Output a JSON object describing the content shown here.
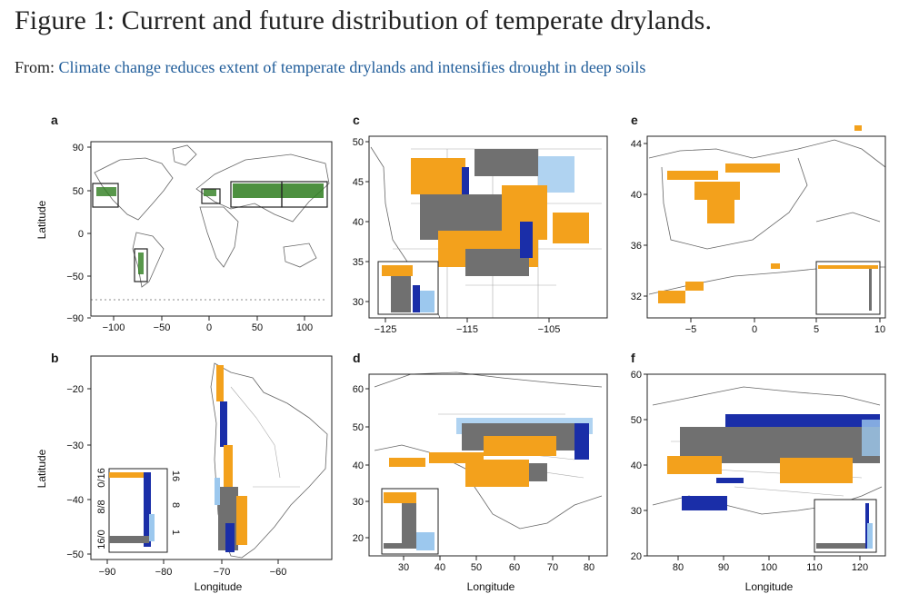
{
  "figure": {
    "title": "Figure 1: Current and future distribution of temperate drylands.",
    "from_prefix": "From:",
    "source_link": "Climate change reduces extent of temperate drylands and intensifies drought in deep soils"
  },
  "colors": {
    "current_green": "#2e7d1e",
    "orange": "#f3a11c",
    "grey": "#707070",
    "dark_blue": "#1a2ea8",
    "light_blue": "#9cc8ee",
    "link": "#1f5c99"
  },
  "panels": {
    "a": {
      "label": "a",
      "ylabel": "Latitude",
      "xticks": [
        "−100",
        "−50",
        "0",
        "50",
        "100"
      ],
      "yticks": [
        "90",
        "50",
        "0",
        "−50",
        "−90"
      ]
    },
    "b": {
      "label": "b",
      "ylabel": "Latitude",
      "xlabel": "Longitude",
      "xticks": [
        "−90",
        "−80",
        "−70",
        "−60"
      ],
      "yticks": [
        "−20",
        "−30",
        "−40",
        "−50"
      ],
      "inset_left_ticks": [
        "0/16",
        "8/8",
        "16/0"
      ],
      "inset_right_ticks": [
        "16",
        "8",
        "1"
      ]
    },
    "c": {
      "label": "c",
      "xticks": [
        "−125",
        "−115",
        "−105"
      ],
      "yticks": [
        "50",
        "45",
        "40",
        "35",
        "30"
      ]
    },
    "d": {
      "label": "d",
      "xlabel": "Longitude",
      "xticks": [
        "30",
        "40",
        "50",
        "60",
        "70",
        "80"
      ],
      "yticks": [
        "60",
        "50",
        "40",
        "30",
        "20"
      ]
    },
    "e": {
      "label": "e",
      "xticks": [
        "−5",
        "0",
        "5",
        "10"
      ],
      "yticks": [
        "44",
        "40",
        "36",
        "32"
      ]
    },
    "f": {
      "label": "f",
      "xlabel": "Longitude",
      "xticks": [
        "80",
        "90",
        "100",
        "110",
        "120"
      ],
      "yticks": [
        "60",
        "50",
        "40",
        "30",
        "20"
      ]
    }
  }
}
